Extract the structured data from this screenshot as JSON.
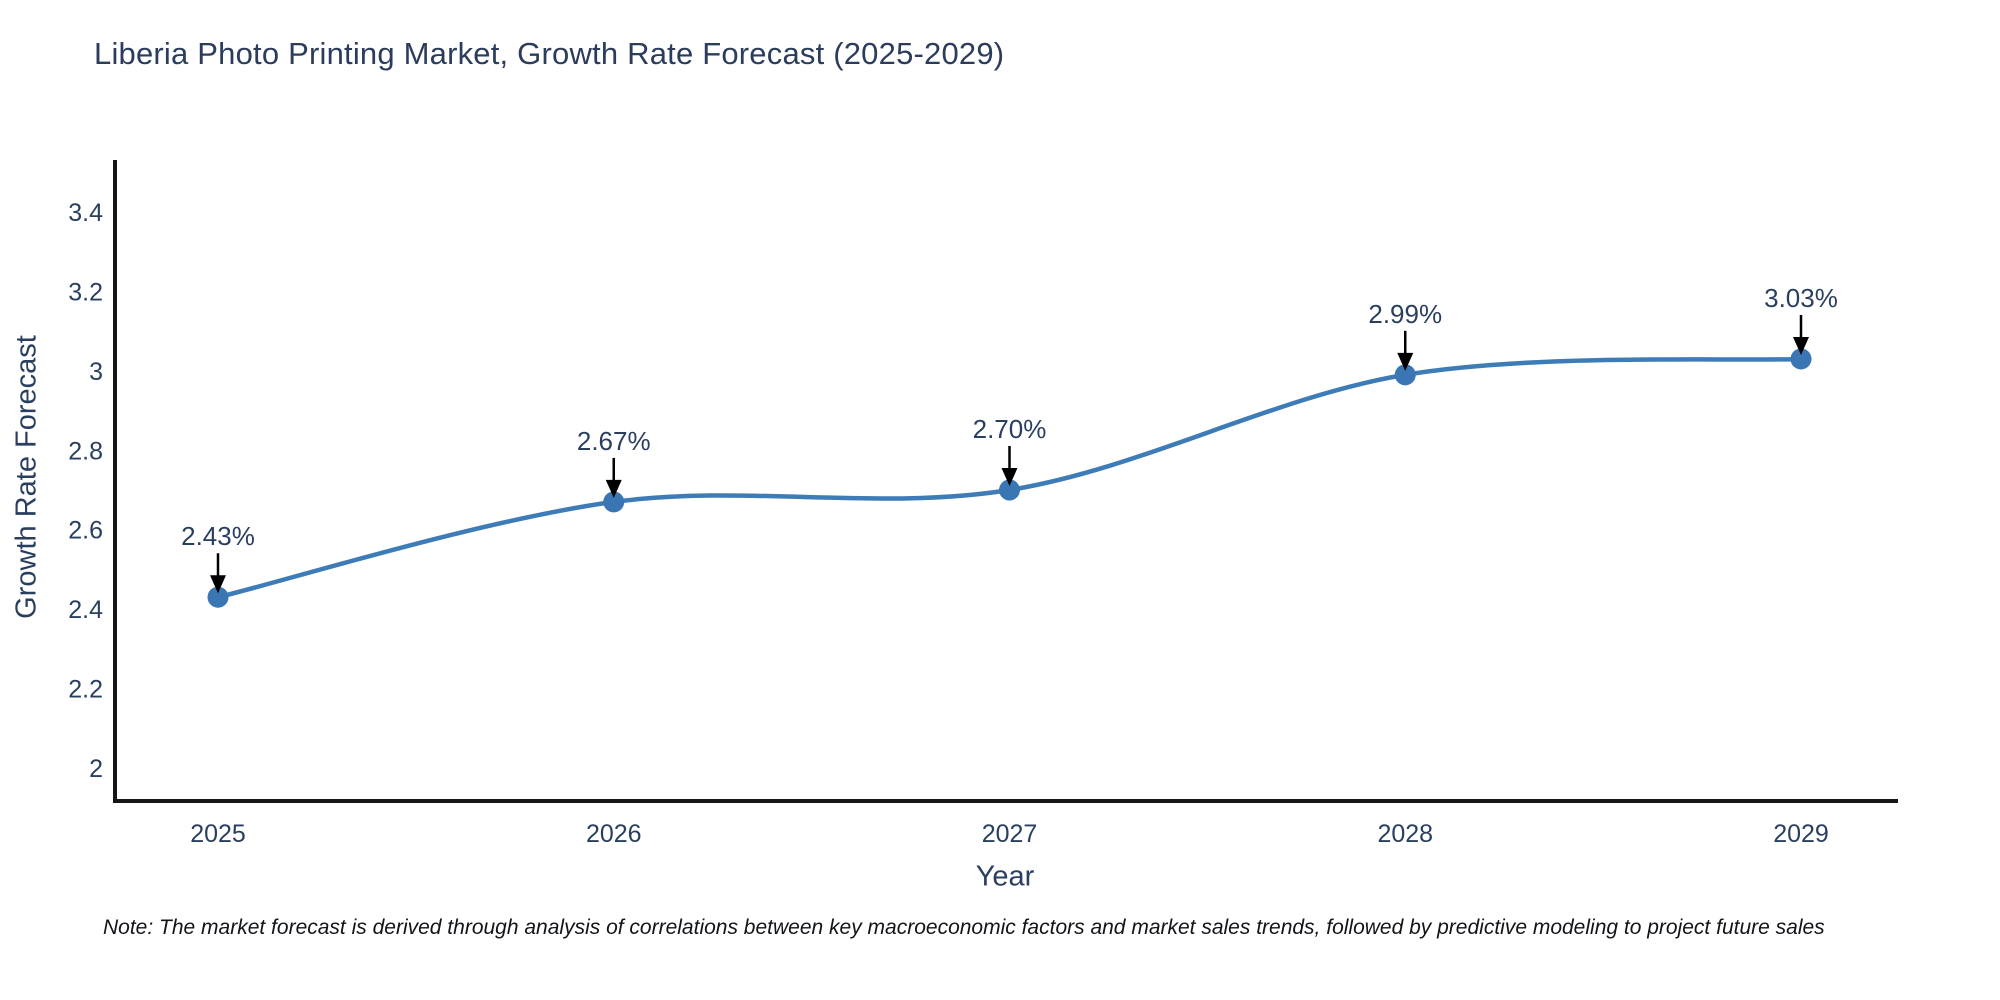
{
  "chart_data": {
    "type": "line",
    "line_shape": "spline",
    "title": "Liberia Photo Printing Market, Growth Rate Forecast (2025-2029)",
    "xlabel": "Year",
    "ylabel": "Growth Rate Forecast",
    "x": [
      2025,
      2026,
      2027,
      2028,
      2029
    ],
    "series": [
      {
        "name": "Growth Rate Forecast",
        "values": [
          2.43,
          2.67,
          2.7,
          2.99,
          3.03
        ]
      }
    ],
    "point_labels": [
      "2.43%",
      "2.67%",
      "2.70%",
      "2.99%",
      "3.03%"
    ],
    "x_tick_labels": [
      "2025",
      "2026",
      "2027",
      "2028",
      "2029"
    ],
    "y_tick_values": [
      2,
      2.2,
      2.4,
      2.6,
      2.8,
      3,
      3.2,
      3.4
    ],
    "y_tick_labels": [
      "2",
      "2.2",
      "2.4",
      "2.6",
      "2.8",
      "3",
      "3.2",
      "3.4"
    ],
    "ylim": [
      1.92,
      3.53
    ],
    "grid": false,
    "legend": "none",
    "colors": {
      "line": "#3e7cb8",
      "marker": "#3a76b4",
      "axis_spine": "#161616",
      "tick_text": "#2a3f5f",
      "title_text": "#2b3c5c",
      "annotation_text": "#2a3f5f",
      "annotation_arrow": "#000000",
      "background": "#ffffff"
    }
  },
  "note": {
    "text": "Note: The market forecast is derived through analysis of correlations between key macroeconomic factors and market sales trends, followed by predictive modeling to project future sales"
  }
}
